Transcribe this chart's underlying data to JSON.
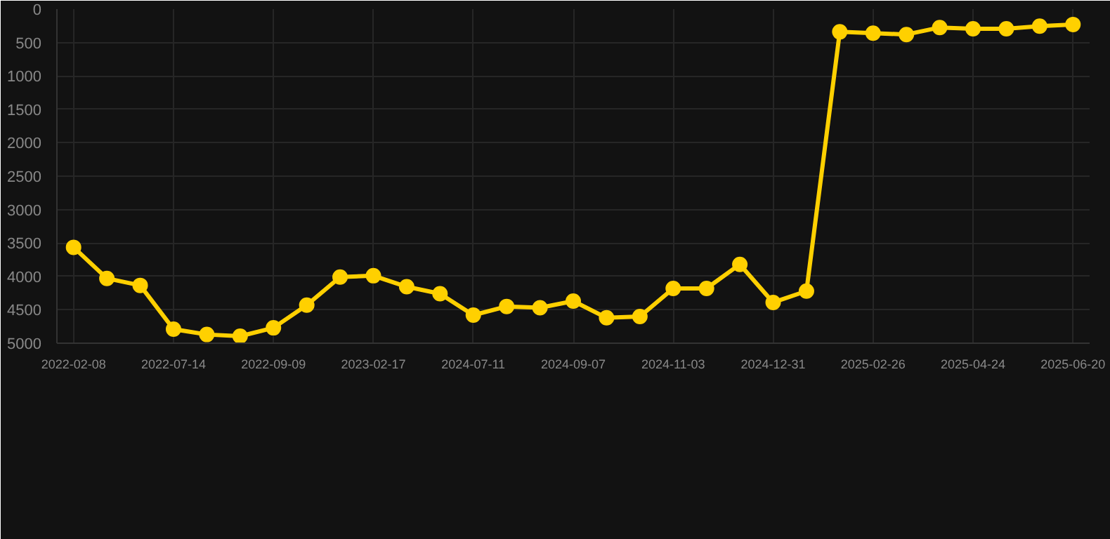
{
  "chart_data": {
    "type": "line",
    "categories": [
      "2022-02-08",
      null,
      null,
      "2022-07-14",
      null,
      null,
      "2022-09-09",
      null,
      null,
      "2023-02-17",
      null,
      null,
      "2024-07-11",
      null,
      null,
      "2024-09-07",
      null,
      null,
      "2024-11-03",
      null,
      null,
      "2024-12-31",
      null,
      null,
      "2025-02-26",
      null,
      null,
      "2025-04-24",
      null,
      null,
      "2025-06-20"
    ],
    "series": [
      {
        "color": "#ffd000",
        "values": [
          3565,
          4030,
          4135,
          4790,
          4870,
          4895,
          4770,
          4430,
          4010,
          3990,
          4155,
          4260,
          4580,
          4450,
          4470,
          4370,
          4620,
          4600,
          4180,
          4180,
          3820,
          4390,
          4220,
          340,
          360,
          380,
          275,
          295,
          295,
          255,
          230
        ]
      }
    ],
    "ylim": [
      5000,
      0
    ],
    "yticks": [
      0,
      500,
      1000,
      1500,
      2000,
      2500,
      3000,
      3500,
      4000,
      4500,
      5000
    ],
    "grid": true,
    "marker": "circle",
    "line_style": "solid"
  }
}
